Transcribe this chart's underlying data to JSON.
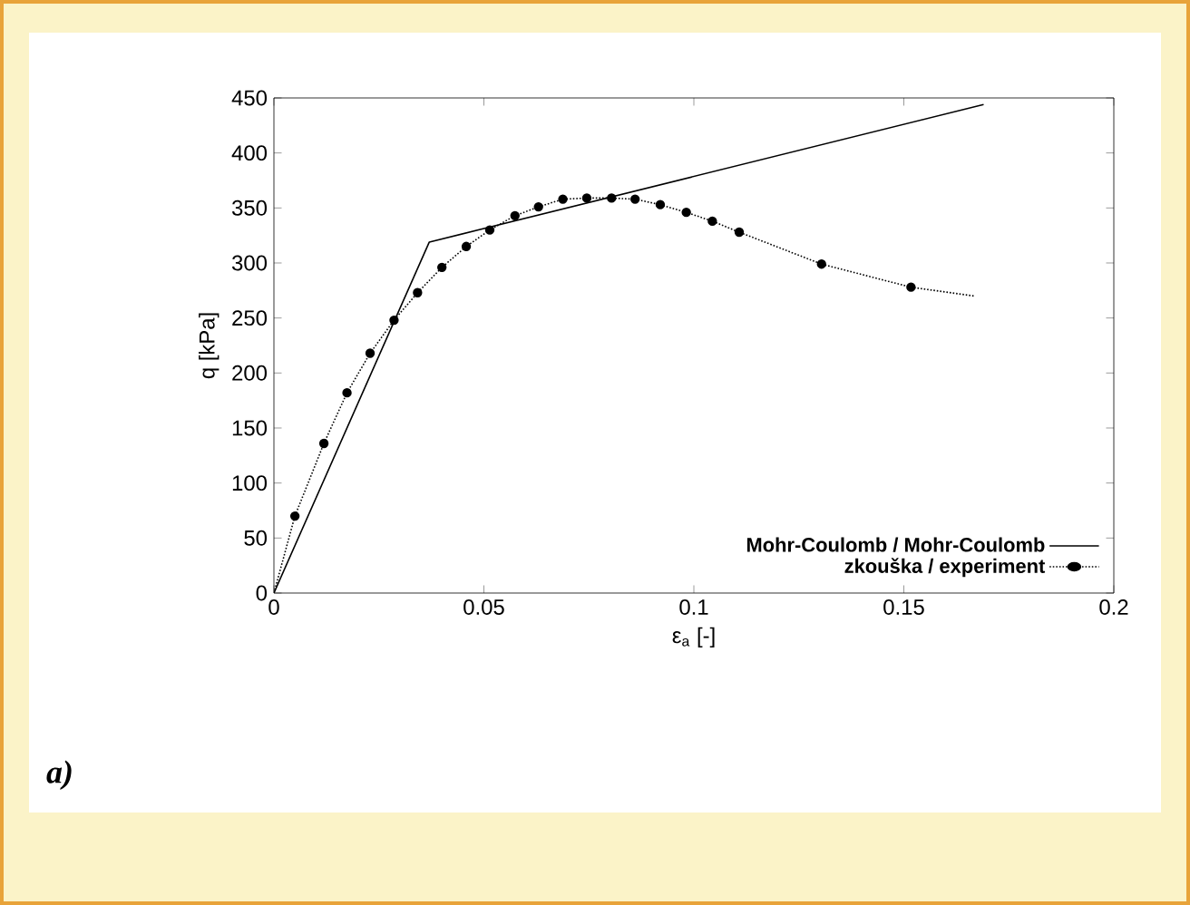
{
  "chart_data": {
    "type": "line",
    "xlabel": "ε$_{a}$ [-]",
    "ylabel": "q [kPa]",
    "xlim": [
      0,
      0.2
    ],
    "ylim": [
      0,
      450
    ],
    "xticks": [
      0,
      0.05,
      0.1,
      0.15,
      0.2
    ],
    "yticks": [
      0,
      50,
      100,
      150,
      200,
      250,
      300,
      350,
      400,
      450
    ],
    "legend": "bottom right",
    "grid": false,
    "series": [
      {
        "name": "Mohr-Coulomb / Mohr-Coulomb",
        "color": "#000000",
        "marker": "none",
        "line_style": "solid",
        "x": [
          0,
          0.037,
          0.169
        ],
        "values": [
          0,
          319,
          444
        ]
      },
      {
        "name": "zkouška / experiment",
        "color": "#000000",
        "marker": "circle",
        "line_style": "dotted",
        "x": [
          0.005,
          0.0119,
          0.0174,
          0.0229,
          0.0286,
          0.0342,
          0.04,
          0.0458,
          0.0514,
          0.0574,
          0.063,
          0.0688,
          0.0745,
          0.0804,
          0.086,
          0.092,
          0.0982,
          0.1044,
          0.1108,
          0.1304,
          0.1517
        ],
        "values": [
          70,
          136,
          182,
          218,
          248,
          273,
          296,
          315,
          330,
          343,
          351,
          358,
          359,
          359,
          358,
          353,
          346,
          338,
          328,
          299,
          278
        ]
      },
      {
        "color": "#000000",
        "marker": "none",
        "line_style": "dotted",
        "x": [
          0,
          0.005
        ],
        "values": [
          0,
          70
        ]
      },
      {
        "color": "#000000",
        "marker": "none",
        "line_style": "dotted",
        "x": [
          0.1517,
          0.1667
        ],
        "values": [
          278,
          270
        ]
      }
    ],
    "annotations": [
      "a)"
    ]
  }
}
